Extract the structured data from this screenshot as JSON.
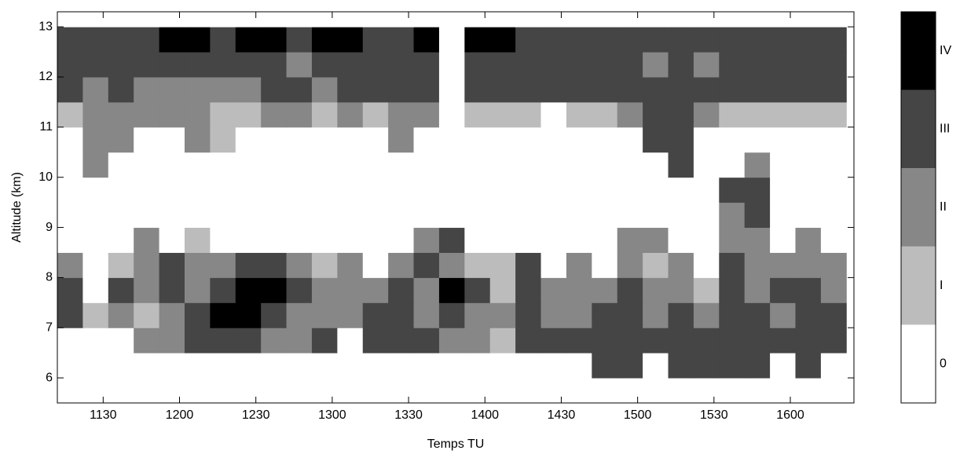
{
  "chart_data": {
    "type": "heatmap",
    "xlabel": "Temps TU",
    "ylabel": "Altitude (km)",
    "x": [
      677,
      687,
      697,
      707,
      717,
      727,
      737,
      747,
      757,
      767,
      777,
      787,
      797,
      807,
      817,
      827,
      837,
      847,
      857,
      867,
      877,
      887,
      897,
      907,
      917,
      927,
      937,
      947,
      957,
      967,
      977
    ],
    "y": [
      5.75,
      6.25,
      6.75,
      7.25,
      7.75,
      8.25,
      8.75,
      9.25,
      9.75,
      10.25,
      10.75,
      11.25,
      11.75,
      12.25,
      12.75,
      13.25
    ],
    "z": [
      [
        0,
        0,
        0,
        0,
        0,
        0,
        0,
        0,
        0,
        0,
        0,
        0,
        0,
        0,
        0,
        0,
        0,
        0,
        0,
        0,
        0,
        0,
        0,
        0,
        0,
        0,
        0,
        0,
        0,
        0,
        0
      ],
      [
        0,
        0,
        0,
        0,
        0,
        0,
        0,
        0,
        0,
        0,
        0,
        0,
        0,
        0,
        0,
        0,
        0,
        0,
        0,
        0,
        0,
        3,
        3,
        0,
        3,
        3,
        3,
        3,
        0,
        3,
        0
      ],
      [
        0,
        0,
        0,
        2,
        2,
        3,
        3,
        3,
        2,
        2,
        3,
        0,
        3,
        3,
        3,
        2,
        2,
        1,
        3,
        3,
        3,
        3,
        3,
        3,
        3,
        3,
        3,
        3,
        3,
        3,
        3
      ],
      [
        3,
        1,
        2,
        1,
        2,
        3,
        4,
        4,
        3,
        2,
        2,
        2,
        3,
        3,
        2,
        3,
        2,
        2,
        3,
        2,
        2,
        3,
        3,
        2,
        3,
        2,
        3,
        3,
        2,
        3,
        3
      ],
      [
        3,
        0,
        3,
        2,
        3,
        2,
        3,
        4,
        4,
        3,
        2,
        2,
        2,
        3,
        2,
        4,
        3,
        1,
        3,
        2,
        2,
        2,
        3,
        2,
        2,
        1,
        3,
        2,
        3,
        3,
        2
      ],
      [
        2,
        0,
        1,
        2,
        3,
        2,
        2,
        3,
        3,
        2,
        1,
        2,
        0,
        2,
        3,
        2,
        1,
        1,
        3,
        0,
        2,
        0,
        2,
        1,
        2,
        0,
        3,
        2,
        2,
        2,
        2
      ],
      [
        0,
        0,
        0,
        2,
        0,
        1,
        0,
        0,
        0,
        0,
        0,
        0,
        0,
        0,
        2,
        3,
        0,
        0,
        0,
        0,
        0,
        0,
        2,
        2,
        0,
        0,
        2,
        2,
        0,
        2,
        0
      ],
      [
        0,
        0,
        0,
        0,
        0,
        0,
        0,
        0,
        0,
        0,
        0,
        0,
        0,
        0,
        0,
        0,
        0,
        0,
        0,
        0,
        0,
        0,
        0,
        0,
        0,
        0,
        2,
        3,
        0,
        0,
        0
      ],
      [
        0,
        0,
        0,
        0,
        0,
        0,
        0,
        0,
        0,
        0,
        0,
        0,
        0,
        0,
        0,
        0,
        0,
        0,
        0,
        0,
        0,
        0,
        0,
        0,
        0,
        0,
        3,
        3,
        0,
        0,
        0
      ],
      [
        0,
        2,
        0,
        0,
        0,
        0,
        0,
        0,
        0,
        0,
        0,
        0,
        0,
        0,
        0,
        0,
        0,
        0,
        0,
        0,
        0,
        0,
        0,
        0,
        3,
        0,
        0,
        2,
        0,
        0,
        0
      ],
      [
        0,
        2,
        2,
        0,
        0,
        2,
        1,
        0,
        0,
        0,
        0,
        0,
        0,
        2,
        0,
        0,
        0,
        0,
        0,
        0,
        0,
        0,
        0,
        3,
        3,
        0,
        0,
        0,
        0,
        0,
        0
      ],
      [
        1,
        2,
        2,
        2,
        2,
        2,
        1,
        1,
        2,
        2,
        1,
        2,
        1,
        2,
        2,
        0,
        1,
        1,
        1,
        0,
        1,
        1,
        2,
        3,
        3,
        2,
        1,
        1,
        1,
        1,
        1
      ],
      [
        3,
        2,
        3,
        2,
        2,
        2,
        2,
        2,
        3,
        3,
        2,
        3,
        3,
        3,
        3,
        0,
        3,
        3,
        3,
        3,
        3,
        3,
        3,
        3,
        3,
        3,
        3,
        3,
        3,
        3,
        3
      ],
      [
        3,
        3,
        3,
        3,
        3,
        3,
        3,
        3,
        3,
        2,
        3,
        3,
        3,
        3,
        3,
        0,
        3,
        3,
        3,
        3,
        3,
        3,
        3,
        2,
        3,
        2,
        3,
        3,
        3,
        3,
        3
      ],
      [
        3,
        3,
        3,
        3,
        4,
        4,
        3,
        4,
        4,
        3,
        4,
        4,
        3,
        3,
        4,
        0,
        4,
        4,
        3,
        3,
        3,
        3,
        3,
        3,
        3,
        3,
        3,
        3,
        3,
        3,
        3
      ],
      [
        0,
        0,
        0,
        0,
        0,
        0,
        0,
        0,
        0,
        0,
        0,
        0,
        0,
        0,
        0,
        0,
        0,
        0,
        0,
        0,
        0,
        0,
        0,
        0,
        0,
        0,
        0,
        0,
        0,
        0,
        0
      ]
    ],
    "xlim": [
      672,
      985
    ],
    "ylim": [
      5.5,
      13.3
    ],
    "xticks": [
      {
        "value": 690,
        "label": "1130"
      },
      {
        "value": 720,
        "label": "1200"
      },
      {
        "value": 750,
        "label": "1230"
      },
      {
        "value": 780,
        "label": "1300"
      },
      {
        "value": 810,
        "label": "1330"
      },
      {
        "value": 840,
        "label": "1400"
      },
      {
        "value": 870,
        "label": "1430"
      },
      {
        "value": 900,
        "label": "1500"
      },
      {
        "value": 930,
        "label": "1530"
      },
      {
        "value": 960,
        "label": "1600"
      }
    ],
    "yticks": [
      6,
      7,
      8,
      9,
      10,
      11,
      12,
      13
    ],
    "colorbar": {
      "ticks": [
        0,
        {
          "value": 1,
          "label": "I"
        },
        {
          "value": 2,
          "label": "II"
        },
        {
          "value": 3,
          "label": "III"
        },
        {
          "value": 4,
          "label": "IV"
        }
      ],
      "colors": [
        "#ffffff",
        "#bcbcbc",
        "#878787",
        "#454545",
        "#000000"
      ]
    }
  }
}
